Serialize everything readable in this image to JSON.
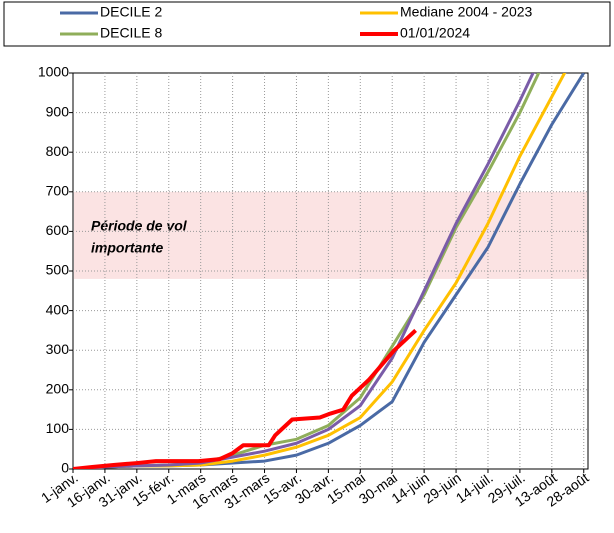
{
  "chart_data": {
    "type": "line",
    "x": [
      1,
      16,
      31,
      46,
      61,
      76,
      91,
      106,
      121,
      136,
      151,
      166,
      181,
      196,
      211,
      226,
      241
    ],
    "xlim": [
      1,
      243
    ],
    "xticks": [
      {
        "value": 1,
        "label": "1-janv."
      },
      {
        "value": 16,
        "label": "16-janv."
      },
      {
        "value": 31,
        "label": "31-janv."
      },
      {
        "value": 46,
        "label": "15-févr."
      },
      {
        "value": 61,
        "label": "1-mars"
      },
      {
        "value": 76,
        "label": "16-mars"
      },
      {
        "value": 91,
        "label": "31-mars"
      },
      {
        "value": 106,
        "label": "15-avr."
      },
      {
        "value": 121,
        "label": "30-avr."
      },
      {
        "value": 136,
        "label": "15-mai"
      },
      {
        "value": 151,
        "label": "30-mai"
      },
      {
        "value": 166,
        "label": "14-juin"
      },
      {
        "value": 181,
        "label": "29-juin"
      },
      {
        "value": 196,
        "label": "14-juil."
      },
      {
        "value": 211,
        "label": "29-juil."
      },
      {
        "value": 226,
        "label": "13-août"
      },
      {
        "value": 241,
        "label": "28-août"
      }
    ],
    "ylim": [
      0,
      1000
    ],
    "yticks": [
      0,
      100,
      200,
      300,
      400,
      500,
      600,
      700,
      800,
      900,
      1000
    ],
    "grid": true,
    "highlight": {
      "from": 480,
      "to": 700,
      "color": "#fbe3e3",
      "label": [
        "Période de vol",
        "importante"
      ]
    },
    "series": [
      {
        "name": "DECILE 2",
        "color": "#4a6aa5",
        "values": [
          0,
          5,
          8,
          8,
          10,
          15,
          20,
          35,
          65,
          110,
          170,
          320,
          440,
          560,
          720,
          870,
          1000
        ]
      },
      {
        "name": "Mediane 2004 - 2023",
        "color": "#ffc000",
        "values": [
          0,
          5,
          8,
          8,
          10,
          20,
          35,
          55,
          85,
          130,
          220,
          350,
          470,
          620,
          790,
          940,
          1090
        ]
      },
      {
        "name": "DECILE 8",
        "color": "#8fae5a",
        "values": [
          0,
          5,
          8,
          10,
          15,
          35,
          60,
          75,
          110,
          180,
          310,
          440,
          610,
          750,
          900,
          1070,
          null
        ]
      },
      {
        "color": "#7a5ca8",
        "values": [
          0,
          5,
          8,
          10,
          15,
          30,
          45,
          65,
          100,
          160,
          280,
          450,
          620,
          770,
          930,
          1100,
          null
        ]
      },
      {
        "name": "01/01/2024",
        "color": "#ff0000",
        "width": 4,
        "x": [
          1,
          10,
          20,
          31,
          40,
          50,
          60,
          70,
          76,
          81,
          88,
          93,
          96,
          99,
          104,
          117,
          122,
          128,
          132,
          135,
          140,
          144,
          148,
          152,
          157,
          162
        ],
        "values": [
          0,
          5,
          10,
          15,
          20,
          20,
          20,
          25,
          40,
          60,
          60,
          60,
          85,
          100,
          125,
          130,
          140,
          150,
          185,
          200,
          225,
          250,
          275,
          300,
          325,
          350
        ]
      }
    ]
  }
}
